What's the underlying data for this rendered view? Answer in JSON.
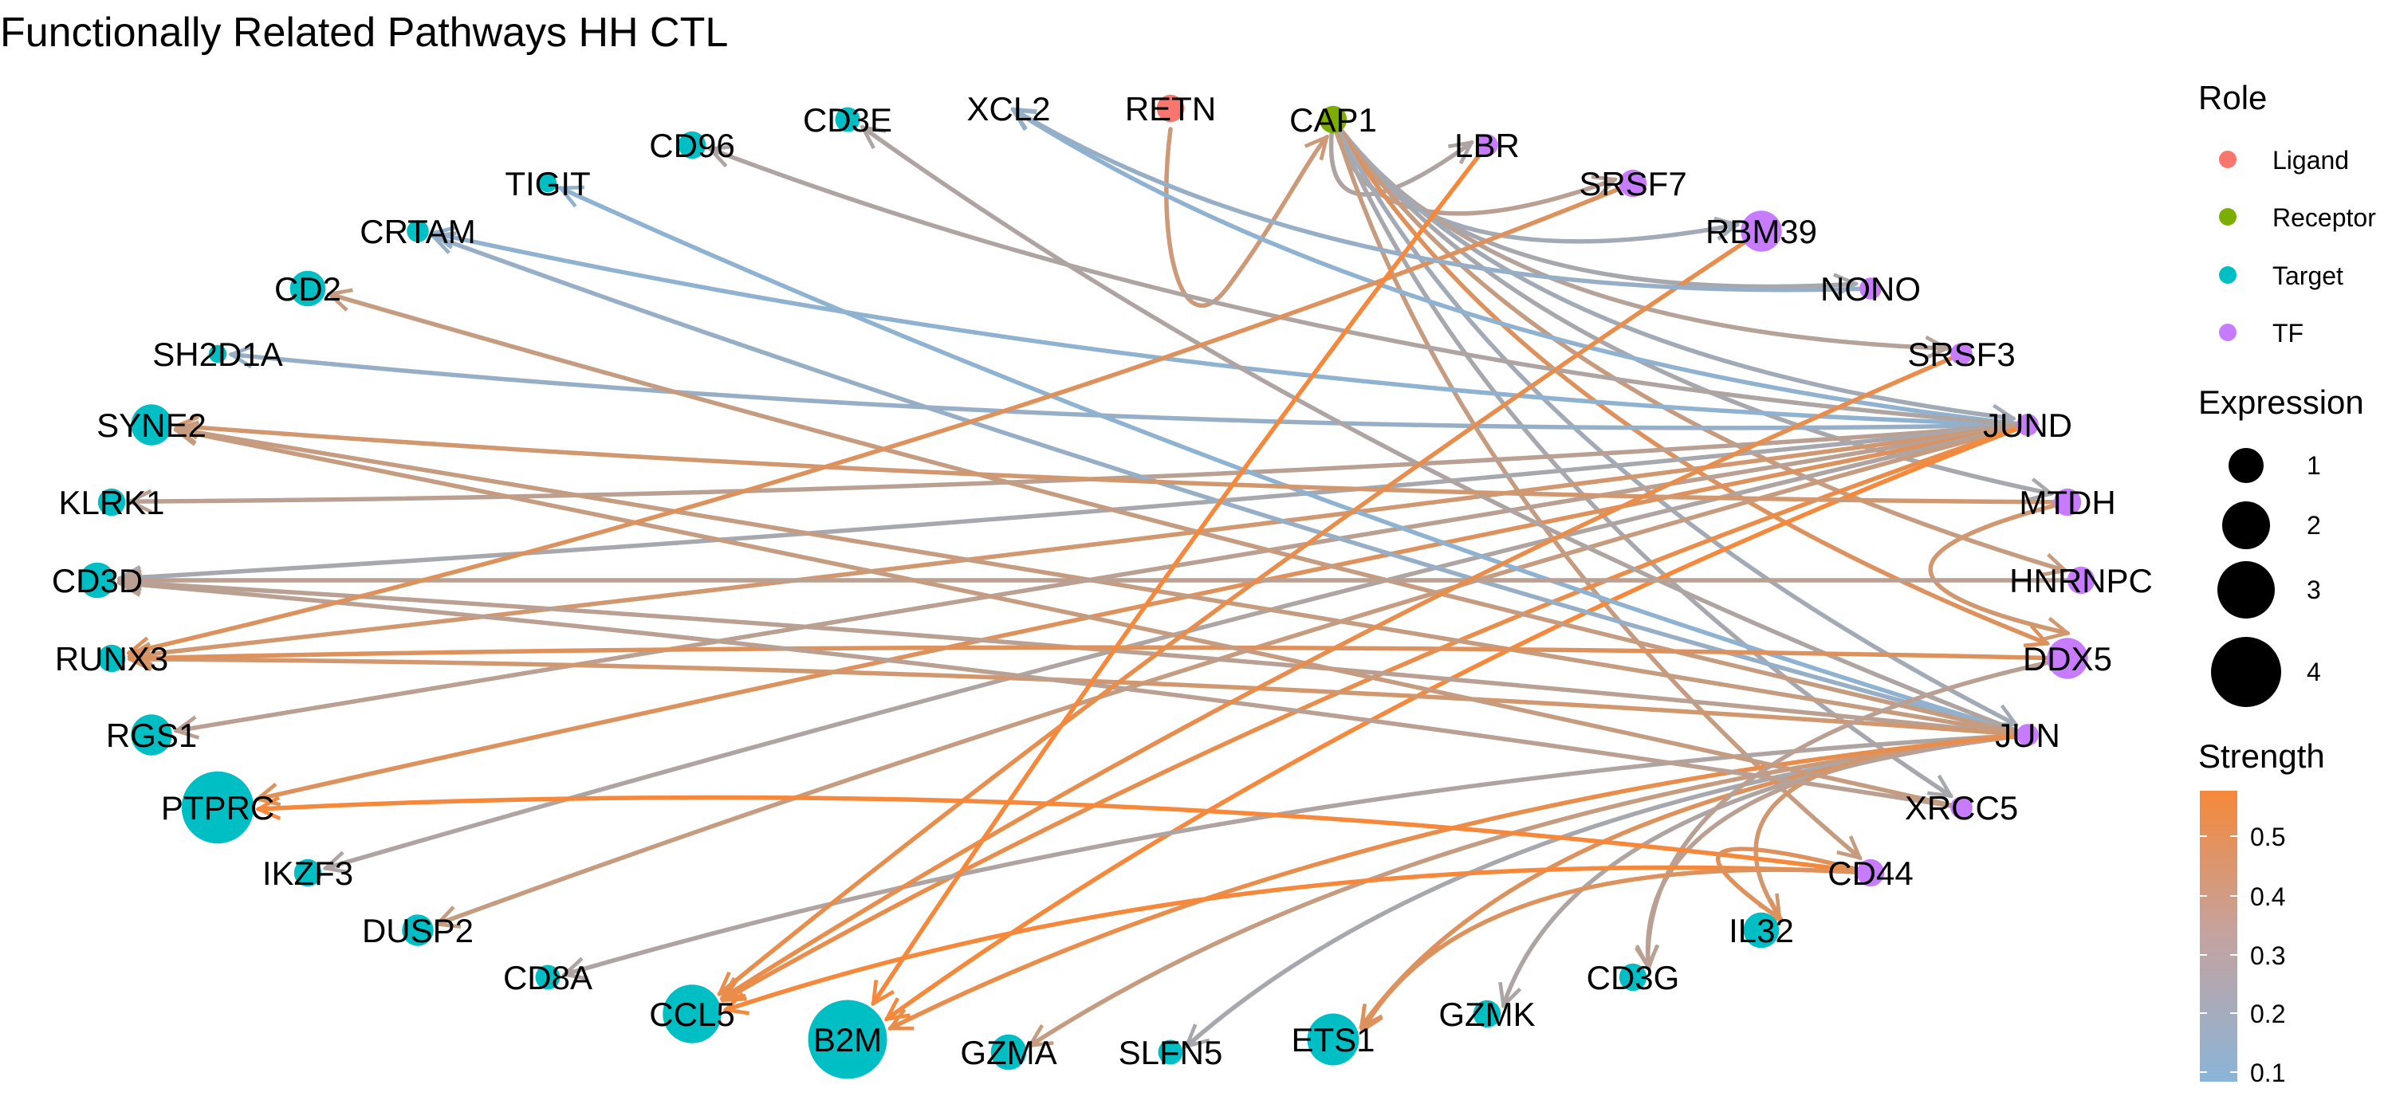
{
  "title": "Functionally Related Pathways HH CTL",
  "legend": {
    "role": {
      "title": "Role",
      "items": [
        {
          "label": "Ligand",
          "color": "#F8766D"
        },
        {
          "label": "Receptor",
          "color": "#7CAE00"
        },
        {
          "label": "Target",
          "color": "#00BFC4"
        },
        {
          "label": "TF",
          "color": "#C77CFF"
        }
      ]
    },
    "expression": {
      "title": "Expression",
      "values": [
        "1",
        "2",
        "3",
        "4"
      ]
    },
    "strength": {
      "title": "Strength",
      "ticks": [
        "0.5",
        "0.4",
        "0.3",
        "0.2",
        "0.1"
      ],
      "low_color": "#8AB4D8",
      "high_color": "#F5883A"
    }
  },
  "nodes": [
    {
      "id": "XCL2",
      "role": "Target",
      "expression": 0
    },
    {
      "id": "RETN",
      "role": "Ligand",
      "expression": 1.2
    },
    {
      "id": "CAP1",
      "role": "Receptor",
      "expression": 1.2
    },
    {
      "id": "LBR",
      "role": "TF",
      "expression": 0.8
    },
    {
      "id": "SRSF7",
      "role": "TF",
      "expression": 1.2
    },
    {
      "id": "RBM39",
      "role": "TF",
      "expression": 2.2
    },
    {
      "id": "NONO",
      "role": "TF",
      "expression": 0.8
    },
    {
      "id": "SRSF3",
      "role": "TF",
      "expression": 0.8
    },
    {
      "id": "JUND",
      "role": "TF",
      "expression": 0.8
    },
    {
      "id": "MTDH",
      "role": "TF",
      "expression": 1.2
    },
    {
      "id": "HNRNPC",
      "role": "TF",
      "expression": 1.2
    },
    {
      "id": "DDX5",
      "role": "TF",
      "expression": 2.2
    },
    {
      "id": "JUN",
      "role": "TF",
      "expression": 0.8
    },
    {
      "id": "XRCC5",
      "role": "TF",
      "expression": 0.8
    },
    {
      "id": "CD44",
      "role": "TF",
      "expression": 1.2
    },
    {
      "id": "IL32",
      "role": "Target",
      "expression": 1.8
    },
    {
      "id": "CD3G",
      "role": "Target",
      "expression": 1.2
    },
    {
      "id": "GZMK",
      "role": "Target",
      "expression": 1.2
    },
    {
      "id": "ETS1",
      "role": "Target",
      "expression": 3.0
    },
    {
      "id": "SLFN5",
      "role": "Target",
      "expression": 1.0
    },
    {
      "id": "GZMA",
      "role": "Target",
      "expression": 1.8
    },
    {
      "id": "B2M",
      "role": "Target",
      "expression": 5.0
    },
    {
      "id": "CCL5",
      "role": "Target",
      "expression": 3.5
    },
    {
      "id": "CD8A",
      "role": "Target",
      "expression": 1.0
    },
    {
      "id": "DUSP2",
      "role": "Target",
      "expression": 1.5
    },
    {
      "id": "IKZF3",
      "role": "Target",
      "expression": 1.2
    },
    {
      "id": "PTPRC",
      "role": "Target",
      "expression": 4.5
    },
    {
      "id": "RGS1",
      "role": "Target",
      "expression": 2.2
    },
    {
      "id": "RUNX3",
      "role": "Target",
      "expression": 1.2
    },
    {
      "id": "CD3D",
      "role": "Target",
      "expression": 1.8
    },
    {
      "id": "KLRK1",
      "role": "Target",
      "expression": 1.2
    },
    {
      "id": "SYNE2",
      "role": "Target",
      "expression": 2.2
    },
    {
      "id": "SH2D1A",
      "role": "Target",
      "expression": 0.5
    },
    {
      "id": "CD2",
      "role": "Target",
      "expression": 1.8
    },
    {
      "id": "CRTAM",
      "role": "Target",
      "expression": 0.8
    },
    {
      "id": "TIGIT",
      "role": "Target",
      "expression": 0.5
    },
    {
      "id": "CD96",
      "role": "Target",
      "expression": 1.2
    },
    {
      "id": "CD3E",
      "role": "Target",
      "expression": 1.0
    }
  ],
  "edges": [
    {
      "from": "RETN",
      "to": "CAP1",
      "strength": 0.38
    },
    {
      "from": "CAP1",
      "to": "LBR",
      "strength": 0.25
    },
    {
      "from": "CAP1",
      "to": "SRSF7",
      "strength": 0.3
    },
    {
      "from": "CAP1",
      "to": "RBM39",
      "strength": 0.2
    },
    {
      "from": "CAP1",
      "to": "NONO",
      "strength": 0.22
    },
    {
      "from": "CAP1",
      "to": "SRSF3",
      "strength": 0.28
    },
    {
      "from": "CAP1",
      "to": "JUND",
      "strength": 0.2
    },
    {
      "from": "CAP1",
      "to": "MTDH",
      "strength": 0.22
    },
    {
      "from": "CAP1",
      "to": "HNRNPC",
      "strength": 0.35
    },
    {
      "from": "CAP1",
      "to": "DDX5",
      "strength": 0.45
    },
    {
      "from": "CAP1",
      "to": "JUN",
      "strength": 0.2
    },
    {
      "from": "CAP1",
      "to": "XRCC5",
      "strength": 0.22
    },
    {
      "from": "CAP1",
      "to": "CD44",
      "strength": 0.35
    },
    {
      "from": "JUND",
      "to": "XCL2",
      "strength": 0.12
    },
    {
      "from": "JUND",
      "to": "CRTAM",
      "strength": 0.12
    },
    {
      "from": "JUND",
      "to": "SH2D1A",
      "strength": 0.15
    },
    {
      "from": "JUND",
      "to": "CD96",
      "strength": 0.25
    },
    {
      "from": "JUND",
      "to": "KLRK1",
      "strength": 0.3
    },
    {
      "from": "JUND",
      "to": "CD3D",
      "strength": 0.22
    },
    {
      "from": "JUND",
      "to": "RUNX3",
      "strength": 0.4
    },
    {
      "from": "JUND",
      "to": "RGS1",
      "strength": 0.3
    },
    {
      "from": "JUND",
      "to": "PTPRC",
      "strength": 0.45
    },
    {
      "from": "JUND",
      "to": "IKZF3",
      "strength": 0.25
    },
    {
      "from": "JUND",
      "to": "DUSP2",
      "strength": 0.35
    },
    {
      "from": "JUND",
      "to": "CCL5",
      "strength": 0.5
    },
    {
      "from": "JUND",
      "to": "B2M",
      "strength": 0.55
    },
    {
      "from": "JUN",
      "to": "TIGIT",
      "strength": 0.12
    },
    {
      "from": "JUN",
      "to": "CRTAM",
      "strength": 0.15
    },
    {
      "from": "JUN",
      "to": "CD3E",
      "strength": 0.25
    },
    {
      "from": "JUN",
      "to": "CD2",
      "strength": 0.35
    },
    {
      "from": "JUN",
      "to": "SYNE2",
      "strength": 0.35
    },
    {
      "from": "JUN",
      "to": "CD3D",
      "strength": 0.3
    },
    {
      "from": "JUN",
      "to": "RUNX3",
      "strength": 0.4
    },
    {
      "from": "JUN",
      "to": "CD8A",
      "strength": 0.25
    },
    {
      "from": "JUN",
      "to": "GZMA",
      "strength": 0.35
    },
    {
      "from": "JUN",
      "to": "SLFN5",
      "strength": 0.22
    },
    {
      "from": "JUN",
      "to": "ETS1",
      "strength": 0.45
    },
    {
      "from": "JUN",
      "to": "GZMK",
      "strength": 0.25
    },
    {
      "from": "JUN",
      "to": "CD3G",
      "strength": 0.3
    },
    {
      "from": "JUN",
      "to": "IL32",
      "strength": 0.4
    },
    {
      "from": "JUN",
      "to": "B2M",
      "strength": 0.5
    },
    {
      "from": "MTDH",
      "to": "SYNE2",
      "strength": 0.4
    },
    {
      "from": "MTDH",
      "to": "DDX5",
      "strength": 0.4
    },
    {
      "from": "HNRNPC",
      "to": "CD3D",
      "strength": 0.3
    },
    {
      "from": "DDX5",
      "to": "RUNX3",
      "strength": 0.45
    },
    {
      "from": "DDX5",
      "to": "CD3G",
      "strength": 0.3
    },
    {
      "from": "XRCC5",
      "to": "CD3D",
      "strength": 0.3
    },
    {
      "from": "XRCC5",
      "to": "SYNE2",
      "strength": 0.35
    },
    {
      "from": "SRSF7",
      "to": "RUNX3",
      "strength": 0.45
    },
    {
      "from": "SRSF3",
      "to": "CCL5",
      "strength": 0.5
    },
    {
      "from": "RBM39",
      "to": "CCL5",
      "strength": 0.5
    },
    {
      "from": "NONO",
      "to": "XCL2",
      "strength": 0.15
    },
    {
      "from": "LBR",
      "to": "B2M",
      "strength": 0.55
    },
    {
      "from": "CD44",
      "to": "PTPRC",
      "strength": 0.55
    },
    {
      "from": "CD44",
      "to": "CCL5",
      "strength": 0.55
    },
    {
      "from": "CD44",
      "to": "ETS1",
      "strength": 0.45
    },
    {
      "from": "CD44",
      "to": "IL32",
      "strength": 0.45
    }
  ]
}
